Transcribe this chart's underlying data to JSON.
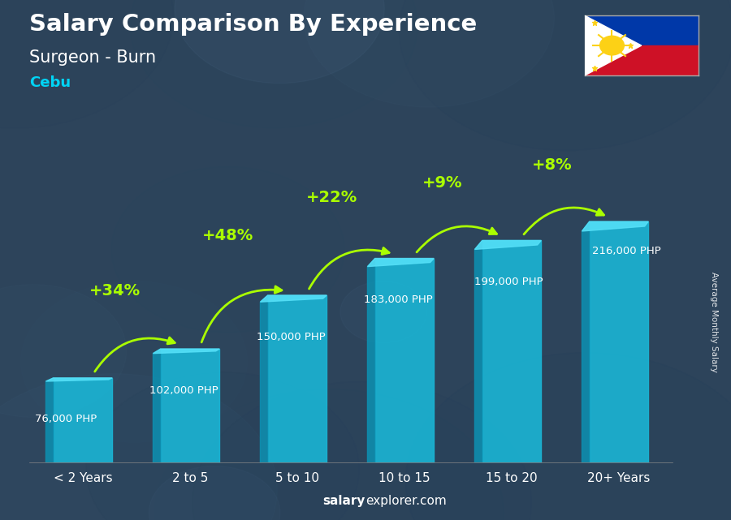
{
  "title": "Salary Comparison By Experience",
  "subtitle": "Surgeon - Burn",
  "location": "Cebu",
  "categories": [
    "< 2 Years",
    "2 to 5",
    "5 to 10",
    "10 to 15",
    "15 to 20",
    "20+ Years"
  ],
  "values": [
    76000,
    102000,
    150000,
    183000,
    199000,
    216000
  ],
  "value_labels": [
    "76,000 PHP",
    "102,000 PHP",
    "150,000 PHP",
    "183,000 PHP",
    "199,000 PHP",
    "216,000 PHP"
  ],
  "pct_labels": [
    "+34%",
    "+48%",
    "+22%",
    "+9%",
    "+8%"
  ],
  "bar_color": "#1ab8d8",
  "bar_left_color": "#0e8fb0",
  "bar_top_color": "#4dd8f0",
  "bg_color": "#1e2d3d",
  "title_color": "#ffffff",
  "subtitle_color": "#ffffff",
  "location_color": "#00d4f5",
  "value_label_color": "#ffffff",
  "pct_color": "#aaff00",
  "watermark_salary": "salary",
  "watermark_rest": "explorer.com",
  "ylabel": "Average Monthly Salary",
  "ylim": [
    0,
    270000
  ],
  "figsize": [
    9.0,
    6.41
  ],
  "dpi": 100
}
